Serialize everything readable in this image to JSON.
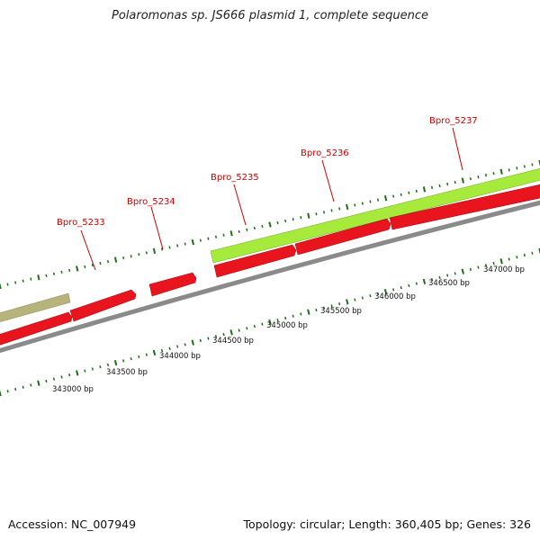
{
  "title": "Polaromonas sp. JS666 plasmid 1, complete sequence",
  "footer": {
    "accession": "Accession: NC_007949",
    "summary": "Topology: circular; Length: 360,405 bp; Genes: 326"
  },
  "gene_labels": [
    "Bpro_5233",
    "Bpro_5234",
    "Bpro_5235",
    "Bpro_5236",
    "Bpro_5237"
  ],
  "ruler_labels": [
    "343000 bp",
    "343500 bp",
    "344000 bp",
    "344500 bp",
    "345000 bp",
    "345500 bp",
    "346000 bp",
    "346500 bp",
    "347000 bp"
  ],
  "colors": {
    "gene": "#e8141e",
    "gene_dark": "#a0000a",
    "green_feature": "#a6ea3c",
    "olive_feature": "#b6b47a",
    "backbone": "#8a8a8a",
    "tick": "#1f6e1a",
    "label": "#cc0000"
  }
}
